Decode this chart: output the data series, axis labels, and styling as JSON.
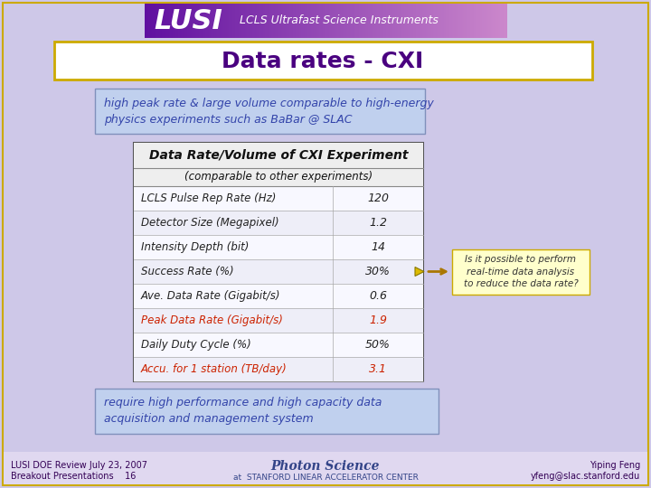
{
  "bg_color": "#cec8e8",
  "title_text": "Data rates - CXI",
  "title_color": "#4a0080",
  "title_bg": "#ffffff",
  "title_border": "#ccaa00",
  "header_bg_left": "#6020a0",
  "header_bg_right": "#c090e0",
  "header_text": "LUSI",
  "header_subtitle": "LCLS Ultrafast Science Instruments",
  "subtitle_box_text": "high peak rate & large volume comparable to high-energy\nphysics experiments such as BaBar @ SLAC",
  "subtitle_box_bg": "#c0d0ee",
  "subtitle_box_border": "#8090bb",
  "table_title": "Data Rate/Volume of CXI Experiment",
  "table_subtitle": "(comparable to other experiments)",
  "table_rows": [
    [
      "LCLS Pulse Rep Rate (Hz)",
      "120",
      false
    ],
    [
      "Detector Size (Megapixel)",
      "1.2",
      false
    ],
    [
      "Intensity Depth (bit)",
      "14",
      false
    ],
    [
      "Success Rate (%)",
      "30%",
      false
    ],
    [
      "Ave. Data Rate (Gigabit/s)",
      "0.6",
      false
    ],
    [
      "Peak Data Rate (Gigabit/s)",
      "1.9",
      true
    ],
    [
      "Daily Duty Cycle (%)",
      "50%",
      false
    ],
    [
      "Accu. for 1 station (TB/day)",
      "3.1",
      true
    ]
  ],
  "table_border": "#555555",
  "row_alt_bg": "#eeeef8",
  "row_normal_bg": "#f8f8ff",
  "red_color": "#cc2200",
  "normal_color": "#222222",
  "annotation_text": "Is it possible to perform\nreal-time data analysis\nto reduce the data rate?",
  "annotation_bg": "#ffffcc",
  "annotation_border": "#ccaa00",
  "bottom_box_text": "require high performance and high capacity data\nacquisition and management system",
  "bottom_box_bg": "#c0d0ee",
  "bottom_box_border": "#8090bb",
  "footer_left1": "LUSI DOE Review July 23, 2007",
  "footer_left2": "Breakout Presentations    16",
  "footer_right1": "Yiping Feng",
  "footer_right2": "yfeng@slac.stanford.edu",
  "footer_color": "#330055",
  "photon_color": "#334488",
  "footer_bg": "#e0d8f0"
}
